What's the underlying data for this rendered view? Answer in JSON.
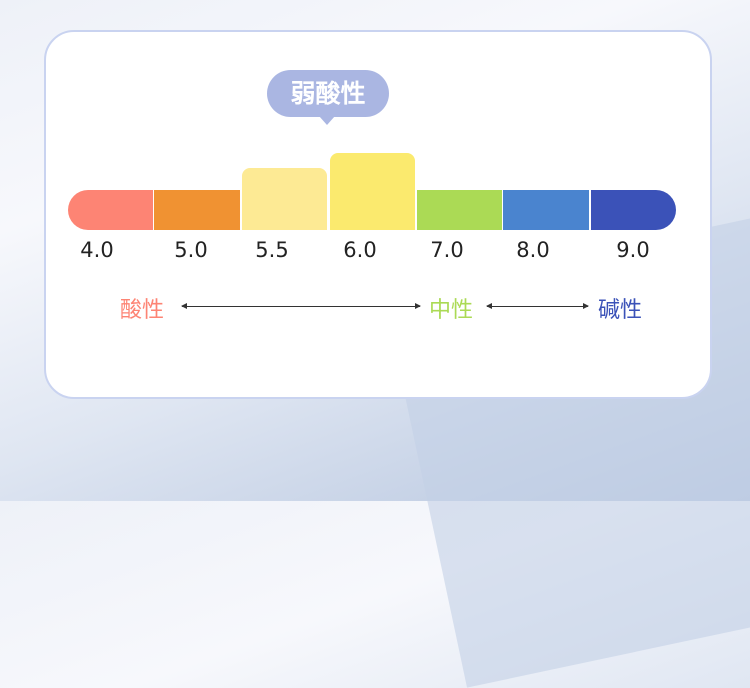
{
  "bubble": {
    "label": "弱酸性",
    "color": "#aab6e2"
  },
  "scale": [
    {
      "label": "4.0",
      "color": "#fd8474",
      "raised": 0
    },
    {
      "label": "5.0",
      "color": "#f09232",
      "raised": 0
    },
    {
      "label": "5.5",
      "color": "#fdea94",
      "raised": 1
    },
    {
      "label": "6.0",
      "color": "#fbea6e",
      "raised": 2
    },
    {
      "label": "7.0",
      "color": "#abda55",
      "raised": 0
    },
    {
      "label": "8.0",
      "color": "#4a84cf",
      "raised": 0
    },
    {
      "label": "9.0",
      "color": "#3b52b8",
      "raised": 0
    }
  ],
  "categories": [
    {
      "label": "酸性",
      "color": "#fd8474"
    },
    {
      "label": "中性",
      "color": "#abda55"
    },
    {
      "label": "碱性",
      "color": "#3b52b8"
    }
  ]
}
